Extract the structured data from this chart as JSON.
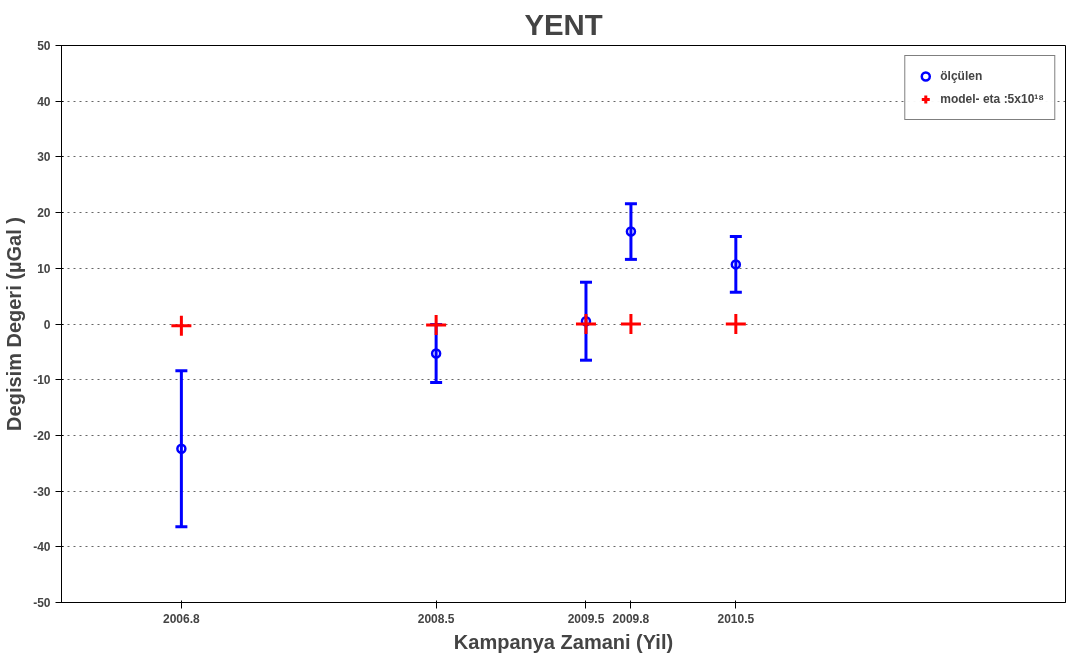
{
  "chart_data": {
    "type": "scatter",
    "title": "YENT",
    "xlabel": "Kampanya Zamani (Yil)",
    "ylabel": "Degisim Degeri (µGal )",
    "x": [
      2006.8,
      2008.5,
      2009.5,
      2009.8,
      2010.5
    ],
    "xlim": [
      2006.0,
      2012.7
    ],
    "xticks": [
      2006.8,
      2008.5,
      2009.5,
      2009.8,
      2010.5
    ],
    "ylim": [
      -50,
      50
    ],
    "yticks": [
      -50,
      -40,
      -30,
      -20,
      -10,
      0,
      10,
      20,
      30,
      40,
      50
    ],
    "series": [
      {
        "name": "ölçülen",
        "color": "#0000ff",
        "marker": "circle",
        "values": [
          -22.4,
          -5.3,
          0.5,
          16.6,
          10.7
        ],
        "errors": [
          14,
          5.2,
          7,
          5,
          5
        ]
      },
      {
        "name": "model- eta :5x10¹⁸",
        "color": "#ff0000",
        "marker": "cross",
        "values": [
          -0.3,
          -0.2,
          0,
          0,
          0
        ]
      }
    ],
    "grid": "y",
    "line_style": "dotted",
    "legend": "top right"
  }
}
